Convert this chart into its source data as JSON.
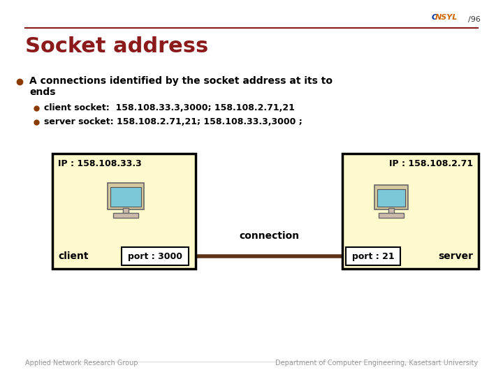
{
  "title": "Socket address",
  "slide_number": "/96",
  "background_color": "#ffffff",
  "title_color": "#8B1A1A",
  "title_fontsize": 22,
  "header_line_color": "#8B1A1A",
  "bullet_color": "#8B3A00",
  "bullet_text_color": "#000000",
  "bullet1_line1": "A connections identified by the socket address at its to",
  "bullet1_line2": "ends",
  "sub_bullet1": "client socket:  158.108.33.3,3000; 158.108.2.71,21",
  "sub_bullet2": "server socket: 158.108.2.71,21; 158.108.33.3,3000 ;",
  "client_ip": "IP : 158.108.33.3",
  "client_port": "port : 3000",
  "client_label": "client",
  "server_ip": "IP : 158.108.2.71",
  "server_port": "port : 21",
  "server_label": "server",
  "connection_label": "connection",
  "box_fill_color": "#FFFACD",
  "box_border_color": "#000000",
  "port_fill_color": "#ffffff",
  "connection_line_color": "#5C3317",
  "footer_left": "Applied Network Research Group",
  "footer_right": "Department of Computer Engineering, Kasetsart University",
  "footer_color": "#999999",
  "footer_fontsize": 7,
  "consyl_orange": "#cc6600",
  "consyl_blue": "#003399",
  "slide_num_color": "#333333"
}
